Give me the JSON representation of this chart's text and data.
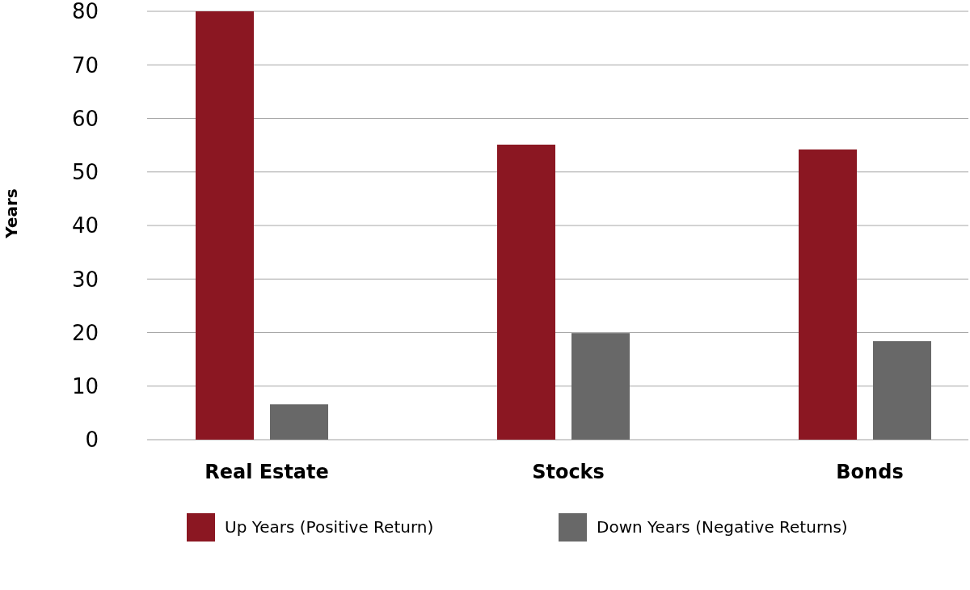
{
  "chart_data": {
    "type": "bar",
    "ylabel": "Years",
    "categories": [
      "Real Estate",
      "Stocks",
      "Bonds"
    ],
    "series": [
      {
        "name": "Up Years (Positive Return)",
        "color": "#8b1722",
        "values": [
          80,
          55.1,
          54.2
        ]
      },
      {
        "name": "Down Years (Negative Returns)",
        "color": "#686868",
        "values": [
          6.6,
          19.9,
          18.4
        ]
      }
    ],
    "ylim": [
      0,
      80
    ],
    "yticks": [
      0,
      10,
      20,
      30,
      40,
      50,
      60,
      70,
      80
    ],
    "grid": "y",
    "legend": "bottom"
  }
}
